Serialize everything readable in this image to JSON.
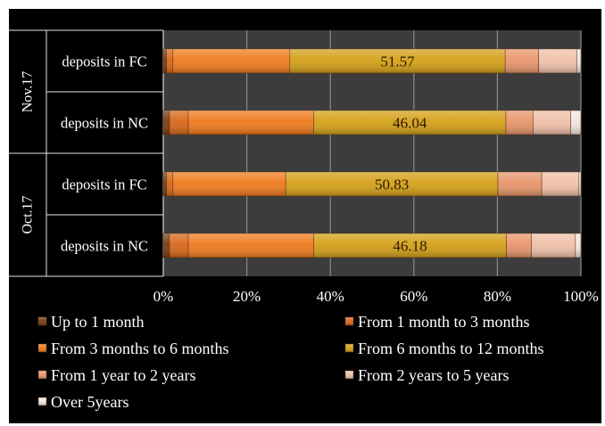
{
  "chart_data": {
    "type": "bar",
    "orientation": "horizontal",
    "stacked": "percent",
    "groups": [
      {
        "label": "Nov.17",
        "rows": [
          {
            "label": "deposits in FC",
            "values": [
              0.8,
              1.5,
              28.0,
              51.57,
              8.0,
              9.13,
              1.0
            ],
            "data_label": "51.57"
          },
          {
            "label": "deposits in NC",
            "values": [
              1.5,
              4.5,
              30.0,
              46.04,
              6.5,
              9.0,
              2.46
            ],
            "data_label": "46.04"
          }
        ]
      },
      {
        "label": "Oct.17",
        "rows": [
          {
            "label": "deposits in FC",
            "values": [
              0.8,
              1.5,
              27.0,
              50.83,
              10.5,
              8.9,
              0.47
            ],
            "data_label": "50.83"
          },
          {
            "label": "deposits in NC",
            "values": [
              1.5,
              4.5,
              30.0,
              46.18,
              6.0,
              10.5,
              1.32
            ],
            "data_label": "46.18"
          }
        ]
      }
    ],
    "series": [
      {
        "name": "Up to 1 month",
        "color": "#7a3a10"
      },
      {
        "name": "From 3 months to 6 months",
        "color": "#f07a1c"
      },
      {
        "name": "From 1 year to 2 years",
        "color": "#e8956a"
      },
      {
        "name": "Over 5years",
        "color": "#f2e6e0"
      },
      {
        "name": "From 1 month to 3 months",
        "color": "#d9661a"
      },
      {
        "name": "From 6 months to 12 months",
        "color": "#d4a017"
      },
      {
        "name": "From 2 years to 5 years",
        "color": "#f0c0a8"
      }
    ],
    "stack_order": [
      0,
      4,
      1,
      5,
      2,
      6,
      3
    ],
    "xlim": [
      0,
      100
    ],
    "x_ticks": [
      "0%",
      "20%",
      "40%",
      "60%",
      "80%",
      "100%"
    ],
    "grid": true,
    "legend_position": "bottom"
  }
}
